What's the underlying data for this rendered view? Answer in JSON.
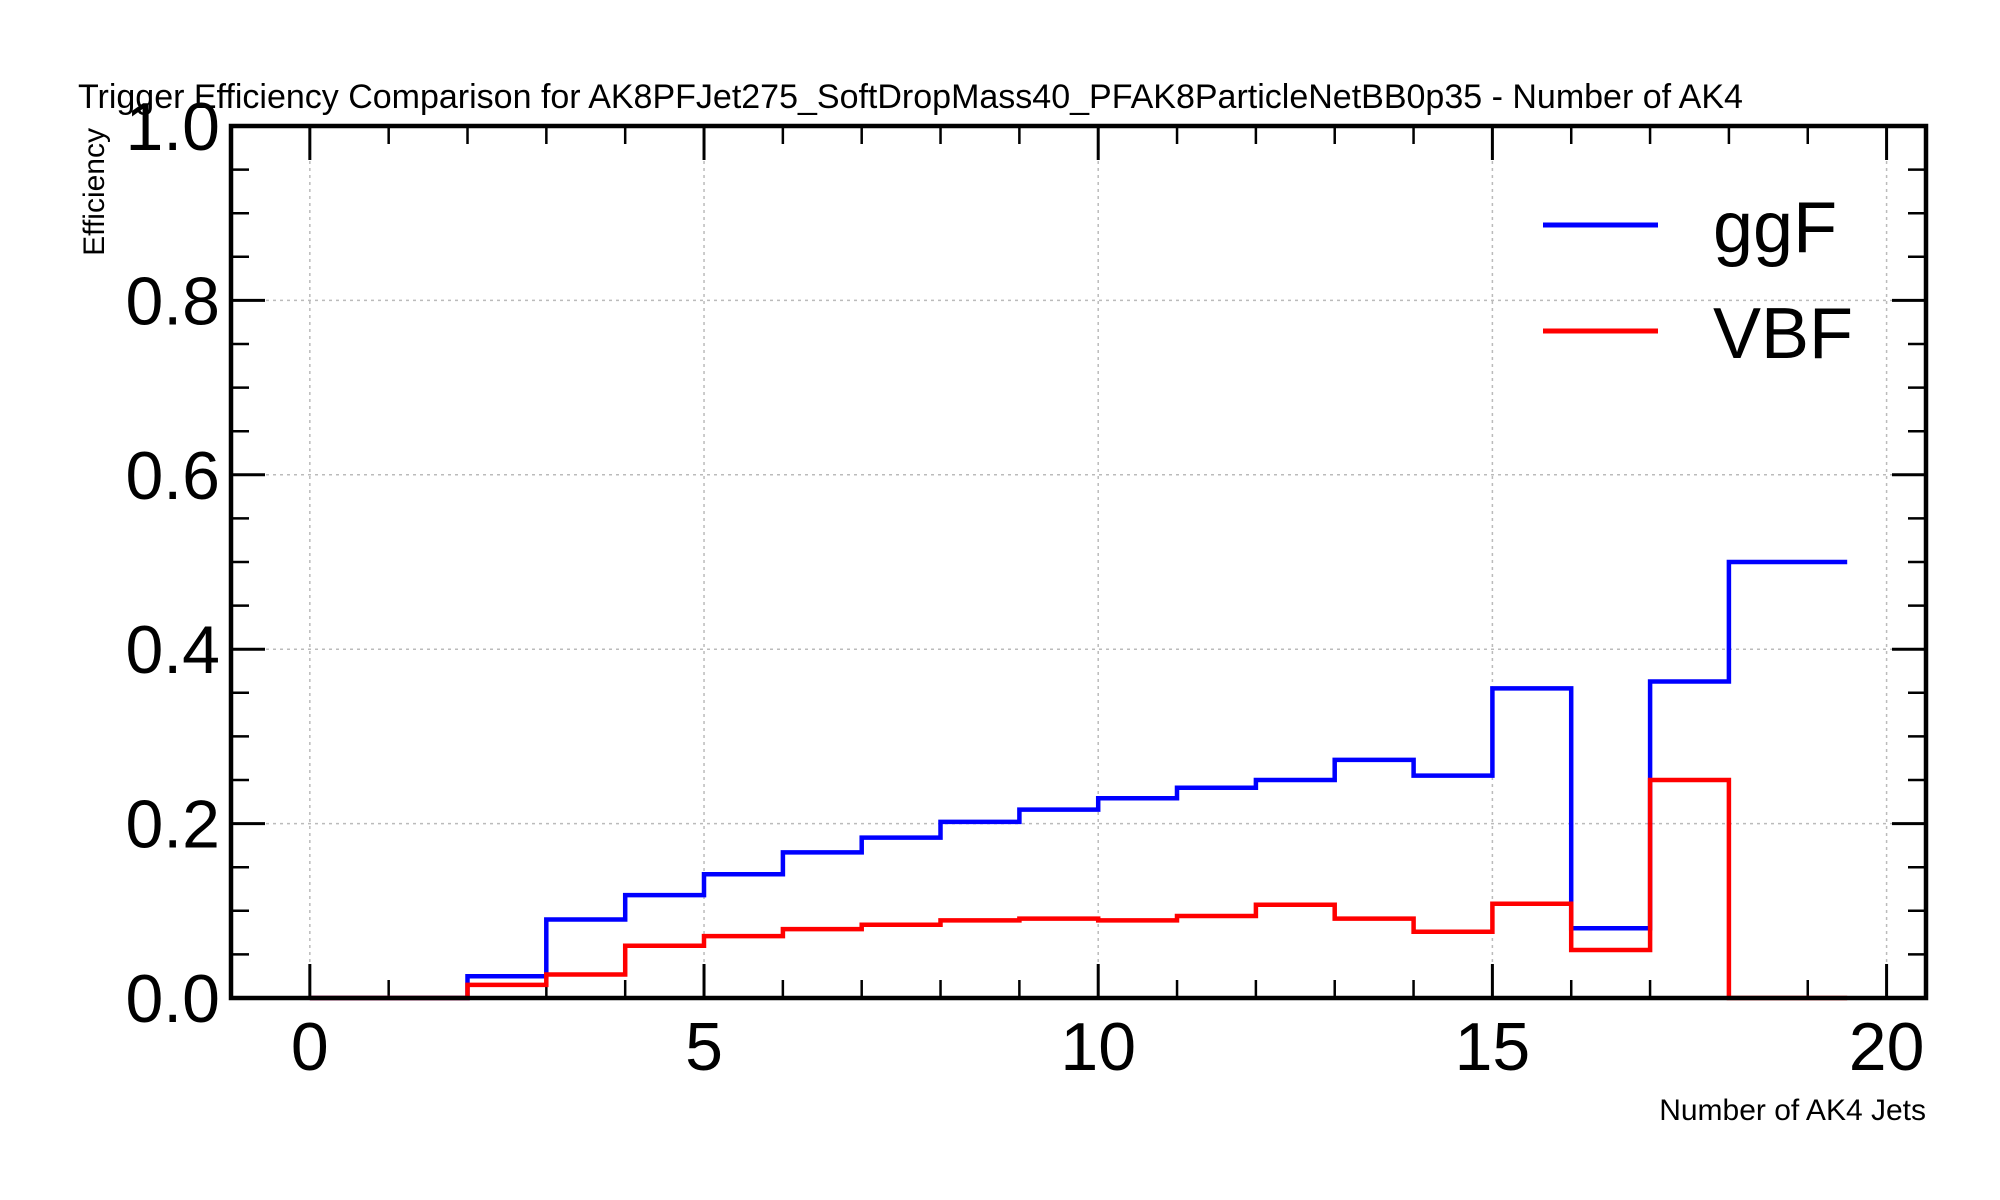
{
  "chart_data": {
    "type": "line",
    "drawstyle": "steps-post",
    "title": "Trigger Efficiency Comparison for AK8PFJet275_SoftDropMass40_PFAK8ParticleNetBB0p35 - Number of AK4",
    "xlabel": "Number of AK4 Jets",
    "ylabel": "Efficiency",
    "xlim": [
      -1,
      20.5
    ],
    "ylim": [
      0,
      1.0
    ],
    "xticks": [
      0,
      5,
      10,
      15,
      20
    ],
    "yticks": [
      0.0,
      0.2,
      0.4,
      0.6,
      0.8,
      1.0
    ],
    "ytick_labels": [
      "0.0",
      "0.2",
      "0.4",
      "0.6",
      "0.8",
      "1.0"
    ],
    "grid": true,
    "legend_position": "top-right",
    "bin_edges": [
      0,
      1,
      2,
      3,
      4,
      5,
      6,
      7,
      8,
      9,
      10,
      11,
      12,
      13,
      14,
      15,
      16,
      17,
      18,
      19.5
    ],
    "series": [
      {
        "name": "ggF",
        "color": "#0000ff",
        "values": [
          0.0,
          0.0,
          0.025,
          0.09,
          0.118,
          0.142,
          0.167,
          0.184,
          0.202,
          0.216,
          0.229,
          0.241,
          0.25,
          0.273,
          0.255,
          0.355,
          0.08,
          0.363,
          0.5
        ]
      },
      {
        "name": "VBF",
        "color": "#ff0000",
        "values": [
          0.0,
          0.0,
          0.015,
          0.027,
          0.06,
          0.071,
          0.079,
          0.084,
          0.089,
          0.091,
          0.089,
          0.094,
          0.107,
          0.091,
          0.076,
          0.108,
          0.055,
          0.25,
          0.0
        ]
      }
    ]
  }
}
